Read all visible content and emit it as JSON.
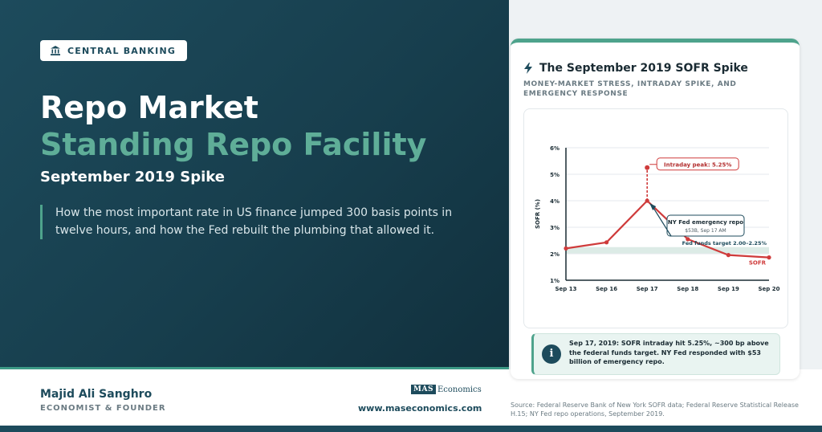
{
  "hero": {
    "badge": "CENTRAL BANKING",
    "title_line1": "Repo Market",
    "title_line2": "Standing Repo Facility",
    "title_line3": "September 2019 Spike",
    "lede": "How the most important rate in US finance jumped 300 basis points in twelve hours, and how the Fed rebuilt the plumbing that allowed it."
  },
  "footer": {
    "author_name": "Majid Ali Sanghro",
    "author_role": "ECONOMIST & FOUNDER",
    "logo_mark": "MAS",
    "logo_text": "Economics",
    "website": "www.maseconomics.com",
    "source": "Source: Federal Reserve Bank of New York SOFR data; Federal Reserve Statistical Release H.15; NY Fed repo operations, September 2019."
  },
  "card": {
    "title": "The September 2019 SOFR Spike",
    "subtitle": "MONEY-MARKET STRESS, INTRADAY SPIKE, AND EMERGENCY RESPONSE",
    "info_icon": "i",
    "info_text": "Sep 17, 2019: SOFR intraday hit 5.25%, ~300 bp above the federal funds target. NY Fed responded with $53 billion of emergency repo."
  },
  "colors": {
    "primary": "#1d4b5c",
    "accent_green": "#5fae98",
    "series_red": "#cf3b3b",
    "target_band": "#dcebe6"
  },
  "chart_data": {
    "type": "line",
    "categories": [
      "Sep 13",
      "Sep 16",
      "Sep 17",
      "Sep 18",
      "Sep 19",
      "Sep 20"
    ],
    "series": [
      {
        "name": "SOFR",
        "values": [
          2.2,
          2.43,
          5.25,
          2.55,
          1.95,
          1.86
        ],
        "close_values": [
          2.2,
          2.43,
          4.0,
          2.55,
          1.95,
          1.86
        ]
      }
    ],
    "ylabel": "SOFR (%)",
    "ylim": [
      1,
      6
    ],
    "yticks": [
      "1%",
      "2%",
      "3%",
      "4%",
      "5%",
      "6%"
    ],
    "target_band": [
      2.0,
      2.25
    ],
    "annotations": {
      "peak": "Intraday peak: 5.25%",
      "repo_title": "NY Fed emergency repo",
      "repo_detail": "$53B, Sep 17 AM",
      "target": "Fed funds target 2.00–2.25%",
      "series_label": "SOFR"
    },
    "grid": true
  }
}
